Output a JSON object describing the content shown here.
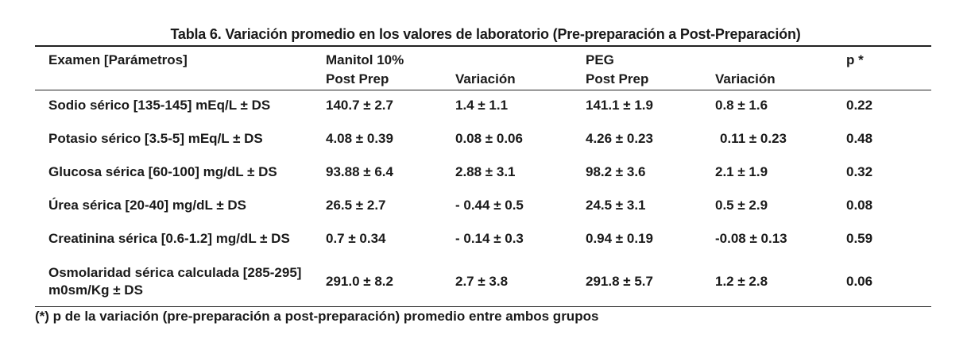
{
  "title": "Tabla 6.  Variación promedio en los valores de laboratorio (Pre-preparación a Post-Preparación)",
  "header": {
    "col0": "Examen [Parámetros]",
    "group1": "Manitol 10%",
    "group1_post": "Post Prep",
    "group1_var": "Variación",
    "group2": "PEG",
    "group2_post": "Post Prep",
    "group2_var": "Variación",
    "p": "p *"
  },
  "rows": [
    {
      "exam": "Sodio sérico [135-145] mEq/L ± DS",
      "m_post": "140.7 ± 2.7",
      "m_var": "1.4 ± 1.1",
      "peg_post": "141.1 ± 1.9",
      "peg_var": "0.8 ± 1.6",
      "p": "0.22"
    },
    {
      "exam": "Potasio sérico [3.5-5] mEq/L ± DS",
      "m_post": "4.08 ± 0.39",
      "m_var": "0.08 ± 0.06",
      "peg_post": "4.26 ± 0.23",
      "peg_var": "0.11 ± 0.23",
      "p": "0.48"
    },
    {
      "exam": "Glucosa sérica [60-100] mg/dL ± DS",
      "m_post": "93.88 ± 6.4",
      "m_var": "2.88 ± 3.1",
      "peg_post": "98.2 ± 3.6",
      "peg_var": "2.1 ± 1.9",
      "p": "0.32"
    },
    {
      "exam": "Úrea sérica [20-40] mg/dL ± DS",
      "m_post": "26.5 ± 2.7",
      "m_var": "- 0.44 ± 0.5",
      "peg_post": "24.5 ± 3.1",
      "peg_var": "0.5 ± 2.9",
      "p": "0.08"
    },
    {
      "exam": "Creatinina sérica [0.6-1.2] mg/dL ± DS",
      "m_post": "0.7 ± 0.34",
      "m_var": "- 0.14 ± 0.3",
      "peg_post": "0.94 ± 0.19",
      "peg_var": "-0.08 ± 0.13",
      "p": "0.59"
    },
    {
      "exam": "Osmolaridad sérica calculada [285-295] m0sm/Kg ± DS",
      "m_post": "291.0 ± 8.2",
      "m_var": "2.7 ± 3.8",
      "peg_post": "291.8 ± 5.7",
      "peg_var": "1.2 ± 2.8",
      "p": "0.06"
    }
  ],
  "footnote": "(*) p de la variación (pre-preparación a post-preparación) promedio entre ambos grupos"
}
